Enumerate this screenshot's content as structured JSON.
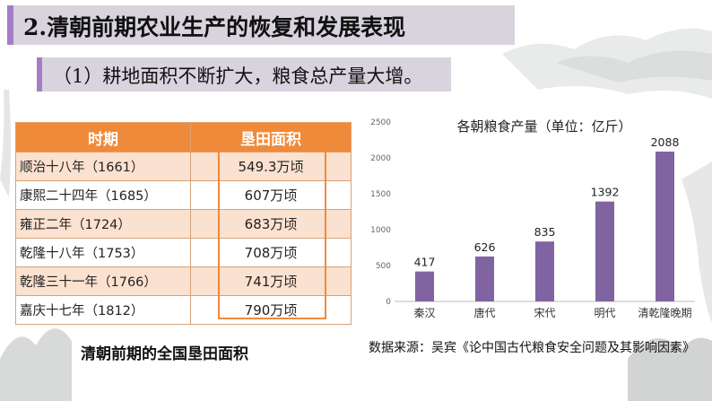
{
  "header": {
    "title": "2.清朝前期农业生产的恢复和发展表现",
    "subtitle": "（1）耕地面积不断扩大，粮食总产量大增。"
  },
  "table": {
    "headers": [
      "时期",
      "垦田面积"
    ],
    "rows": [
      [
        "顺治十八年（1661）",
        "549.3万顷"
      ],
      [
        "康熙二十四年（1685）",
        "607万顷"
      ],
      [
        "雍正二年（1724）",
        "683万顷"
      ],
      [
        "乾隆十八年（1753）",
        "708万顷"
      ],
      [
        "乾隆三十一年（1766）",
        "741万顷"
      ],
      [
        "嘉庆十七年（1812）",
        "790万顷"
      ]
    ],
    "caption": "清朝前期的全国垦田面积"
  },
  "source_note": "数据来源：吴宾《论中国古代粮食安全问题及其影响因素》",
  "colors": {
    "bar": "#8064a2",
    "header": "#ef8a3a",
    "accent": "#a47dc7"
  },
  "chart_data": {
    "type": "bar",
    "title": "各朝粮食产量（单位：亿斤）",
    "categories": [
      "秦汉",
      "唐代",
      "宋代",
      "明代",
      "清乾隆晚期"
    ],
    "values": [
      417,
      626,
      835,
      1392,
      2088
    ],
    "ylim": [
      0,
      2500
    ],
    "yticks": [
      0,
      500,
      1000,
      1500,
      2000,
      2500
    ],
    "grid": false,
    "xlabel": "",
    "ylabel": ""
  }
}
